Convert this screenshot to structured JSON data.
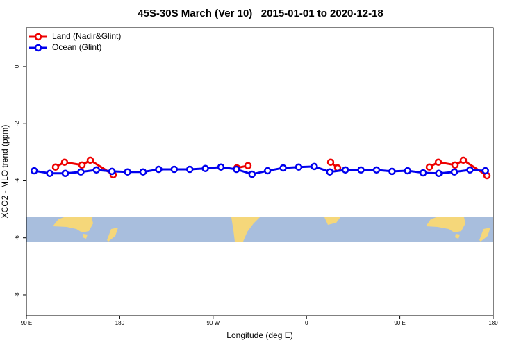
{
  "chart_data": {
    "type": "line",
    "title": "45S-30S March (Ver 10)   2015-01-01 to 2020-12-18",
    "x_label": "Longitude (deg E)",
    "y_label": "XCO2 - MLO trend (ppm)",
    "xlim": [
      90,
      540
    ],
    "ylim": [
      -8.73,
      1.36
    ],
    "xticks": [
      {
        "value": 90,
        "label": "90 E"
      },
      {
        "value": 180,
        "label": "180"
      },
      {
        "value": 270,
        "label": "90 W"
      },
      {
        "value": 360,
        "label": "0"
      },
      {
        "value": 450,
        "label": "90 E"
      },
      {
        "value": 540,
        "label": "180"
      }
    ],
    "yticks": [
      0,
      -2,
      -4,
      -6,
      -8
    ],
    "legend": "top-left",
    "series": [
      {
        "name": "Land (Nadir&Glint)",
        "color": "#ee0000",
        "x": [
          118.1,
          126.8,
          143.6,
          151.6,
          173.7,
          null,
          292.9,
          303.6,
          null,
          383.3,
          390.0,
          null,
          478.4,
          487.1,
          503.2,
          511.2,
          534.0
        ],
        "values": [
          -3.52,
          -3.35,
          -3.45,
          -3.28,
          -3.79,
          null,
          -3.55,
          -3.47,
          null,
          -3.35,
          -3.55,
          null,
          -3.52,
          -3.35,
          -3.45,
          -3.28,
          -3.82
        ]
      },
      {
        "name": "Ocean (Glint)",
        "color": "#0000ee",
        "x": [
          97.5,
          112.5,
          127.5,
          142.5,
          157.5,
          172.5,
          187.5,
          202.5,
          217.5,
          232.5,
          247.5,
          262.5,
          277.5,
          292.5,
          307.5,
          322.5,
          337.5,
          352.5,
          367.5,
          382.5,
          397.5,
          412.5,
          427.5,
          442.5,
          457.5,
          472.5,
          487.5,
          502.5,
          517.5,
          532.5
        ],
        "values": [
          -3.65,
          -3.74,
          -3.74,
          -3.69,
          -3.62,
          -3.67,
          -3.69,
          -3.69,
          -3.6,
          -3.6,
          -3.6,
          -3.57,
          -3.52,
          -3.6,
          -3.77,
          -3.65,
          -3.55,
          -3.52,
          -3.5,
          -3.69,
          -3.62,
          -3.62,
          -3.62,
          -3.67,
          -3.65,
          -3.72,
          -3.74,
          -3.69,
          -3.62,
          -3.65
        ]
      }
    ]
  }
}
